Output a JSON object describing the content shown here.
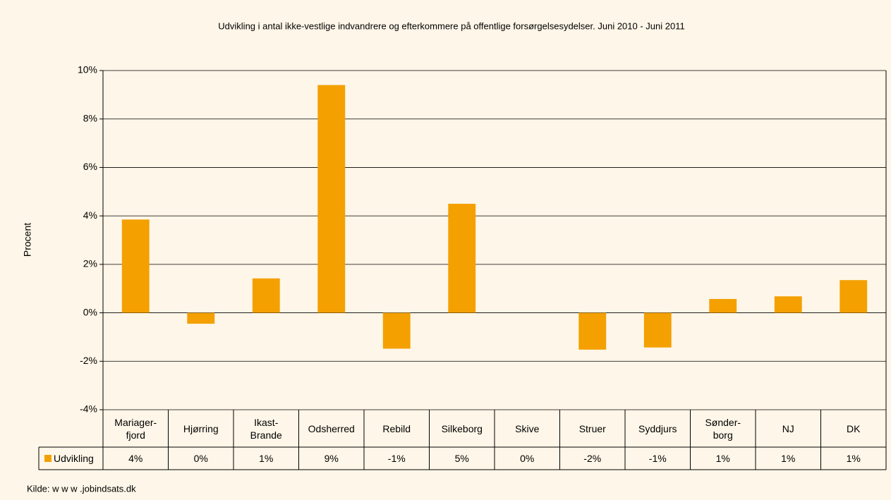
{
  "chart_data": {
    "type": "bar",
    "title": "Udvikling i antal ikke-vestlige indvandrere og efterkommere på offentlige forsørgelsesydelser. Juni 2010 - Juni 2011",
    "ylabel": "Procent",
    "source": "Kilde: w w w .jobindsats.dk",
    "categories": [
      "Mariager-\nfjord",
      "Hjørring",
      "Ikast-\nBrande",
      "Odsherred",
      "Rebild",
      "Silkeborg",
      "Skive",
      "Struer",
      "Syddjurs",
      "Sønder-\nborg",
      "NJ",
      "DK"
    ],
    "series": [
      {
        "name": "Udvikling",
        "color": "#f4a000",
        "values": [
          3.85,
          -0.45,
          1.42,
          9.4,
          -1.48,
          4.5,
          0,
          -1.52,
          -1.43,
          0.57,
          0.68,
          1.35
        ],
        "value_labels": [
          "4%",
          "0%",
          "1%",
          "9%",
          "-1%",
          "5%",
          "0%",
          "-2%",
          "-1%",
          "1%",
          "1%",
          "1%"
        ]
      }
    ],
    "ylim": [
      -4,
      10
    ],
    "yticks": [
      {
        "value": -4,
        "label": "-4%"
      },
      {
        "value": -2,
        "label": "-2%"
      },
      {
        "value": 0,
        "label": "0%"
      },
      {
        "value": 2,
        "label": "2%"
      },
      {
        "value": 4,
        "label": "4%"
      },
      {
        "value": 6,
        "label": "6%"
      },
      {
        "value": 8,
        "label": "8%"
      },
      {
        "value": 10,
        "label": "10%"
      }
    ],
    "grid": true
  }
}
